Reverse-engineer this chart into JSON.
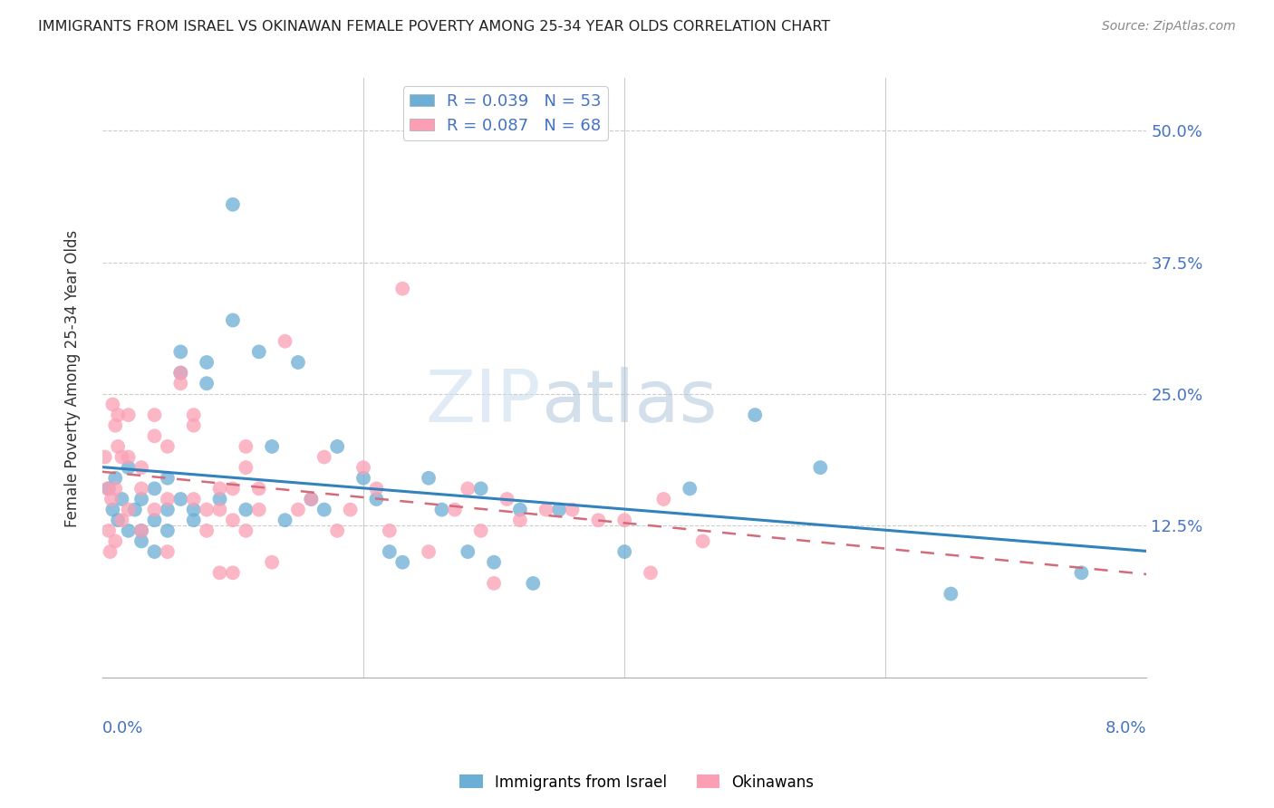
{
  "title": "IMMIGRANTS FROM ISRAEL VS OKINAWAN FEMALE POVERTY AMONG 25-34 YEAR OLDS CORRELATION CHART",
  "source": "Source: ZipAtlas.com",
  "ylabel": "Female Poverty Among 25-34 Year Olds",
  "ytick_labels": [
    "50.0%",
    "37.5%",
    "25.0%",
    "12.5%"
  ],
  "ytick_values": [
    0.5,
    0.375,
    0.25,
    0.125
  ],
  "xmin": 0.0,
  "xmax": 0.08,
  "ymin": -0.02,
  "ymax": 0.55,
  "legend_label1": "R = 0.039   N = 53",
  "legend_label2": "R = 0.087   N = 68",
  "color_israel": "#6baed6",
  "color_okinawa": "#fc9fb5",
  "color_israel_line": "#3182bd",
  "color_okinawa_line": "#d46b7a",
  "watermark": "ZIPatlas",
  "israel_x": [
    0.0005,
    0.0008,
    0.001,
    0.0012,
    0.0015,
    0.002,
    0.002,
    0.0025,
    0.003,
    0.003,
    0.003,
    0.004,
    0.004,
    0.004,
    0.005,
    0.005,
    0.005,
    0.006,
    0.006,
    0.006,
    0.007,
    0.007,
    0.008,
    0.008,
    0.009,
    0.01,
    0.01,
    0.011,
    0.012,
    0.013,
    0.014,
    0.015,
    0.016,
    0.017,
    0.018,
    0.02,
    0.021,
    0.022,
    0.023,
    0.025,
    0.026,
    0.028,
    0.029,
    0.03,
    0.032,
    0.033,
    0.035,
    0.04,
    0.045,
    0.05,
    0.055,
    0.065,
    0.075
  ],
  "israel_y": [
    0.16,
    0.14,
    0.17,
    0.13,
    0.15,
    0.12,
    0.18,
    0.14,
    0.15,
    0.12,
    0.11,
    0.16,
    0.13,
    0.1,
    0.17,
    0.14,
    0.12,
    0.29,
    0.27,
    0.15,
    0.13,
    0.14,
    0.28,
    0.26,
    0.15,
    0.43,
    0.32,
    0.14,
    0.29,
    0.2,
    0.13,
    0.28,
    0.15,
    0.14,
    0.2,
    0.17,
    0.15,
    0.1,
    0.09,
    0.17,
    0.14,
    0.1,
    0.16,
    0.09,
    0.14,
    0.07,
    0.14,
    0.1,
    0.16,
    0.23,
    0.18,
    0.06,
    0.08
  ],
  "okinawa_x": [
    0.0002,
    0.0004,
    0.0005,
    0.0006,
    0.0007,
    0.0008,
    0.001,
    0.001,
    0.001,
    0.0012,
    0.0012,
    0.0015,
    0.0015,
    0.002,
    0.002,
    0.002,
    0.003,
    0.003,
    0.003,
    0.004,
    0.004,
    0.004,
    0.005,
    0.005,
    0.005,
    0.006,
    0.006,
    0.007,
    0.007,
    0.007,
    0.008,
    0.008,
    0.009,
    0.009,
    0.009,
    0.01,
    0.01,
    0.01,
    0.011,
    0.011,
    0.011,
    0.012,
    0.012,
    0.013,
    0.014,
    0.015,
    0.016,
    0.017,
    0.018,
    0.019,
    0.02,
    0.021,
    0.022,
    0.023,
    0.025,
    0.027,
    0.028,
    0.029,
    0.03,
    0.031,
    0.032,
    0.034,
    0.036,
    0.038,
    0.04,
    0.042,
    0.043,
    0.046
  ],
  "okinawa_y": [
    0.19,
    0.16,
    0.12,
    0.1,
    0.15,
    0.24,
    0.16,
    0.22,
    0.11,
    0.23,
    0.2,
    0.19,
    0.13,
    0.23,
    0.19,
    0.14,
    0.18,
    0.16,
    0.12,
    0.23,
    0.21,
    0.14,
    0.2,
    0.15,
    0.1,
    0.27,
    0.26,
    0.23,
    0.22,
    0.15,
    0.14,
    0.12,
    0.16,
    0.14,
    0.08,
    0.16,
    0.13,
    0.08,
    0.2,
    0.18,
    0.12,
    0.16,
    0.14,
    0.09,
    0.3,
    0.14,
    0.15,
    0.19,
    0.12,
    0.14,
    0.18,
    0.16,
    0.12,
    0.35,
    0.1,
    0.14,
    0.16,
    0.12,
    0.07,
    0.15,
    0.13,
    0.14,
    0.14,
    0.13,
    0.13,
    0.08,
    0.15,
    0.11
  ]
}
